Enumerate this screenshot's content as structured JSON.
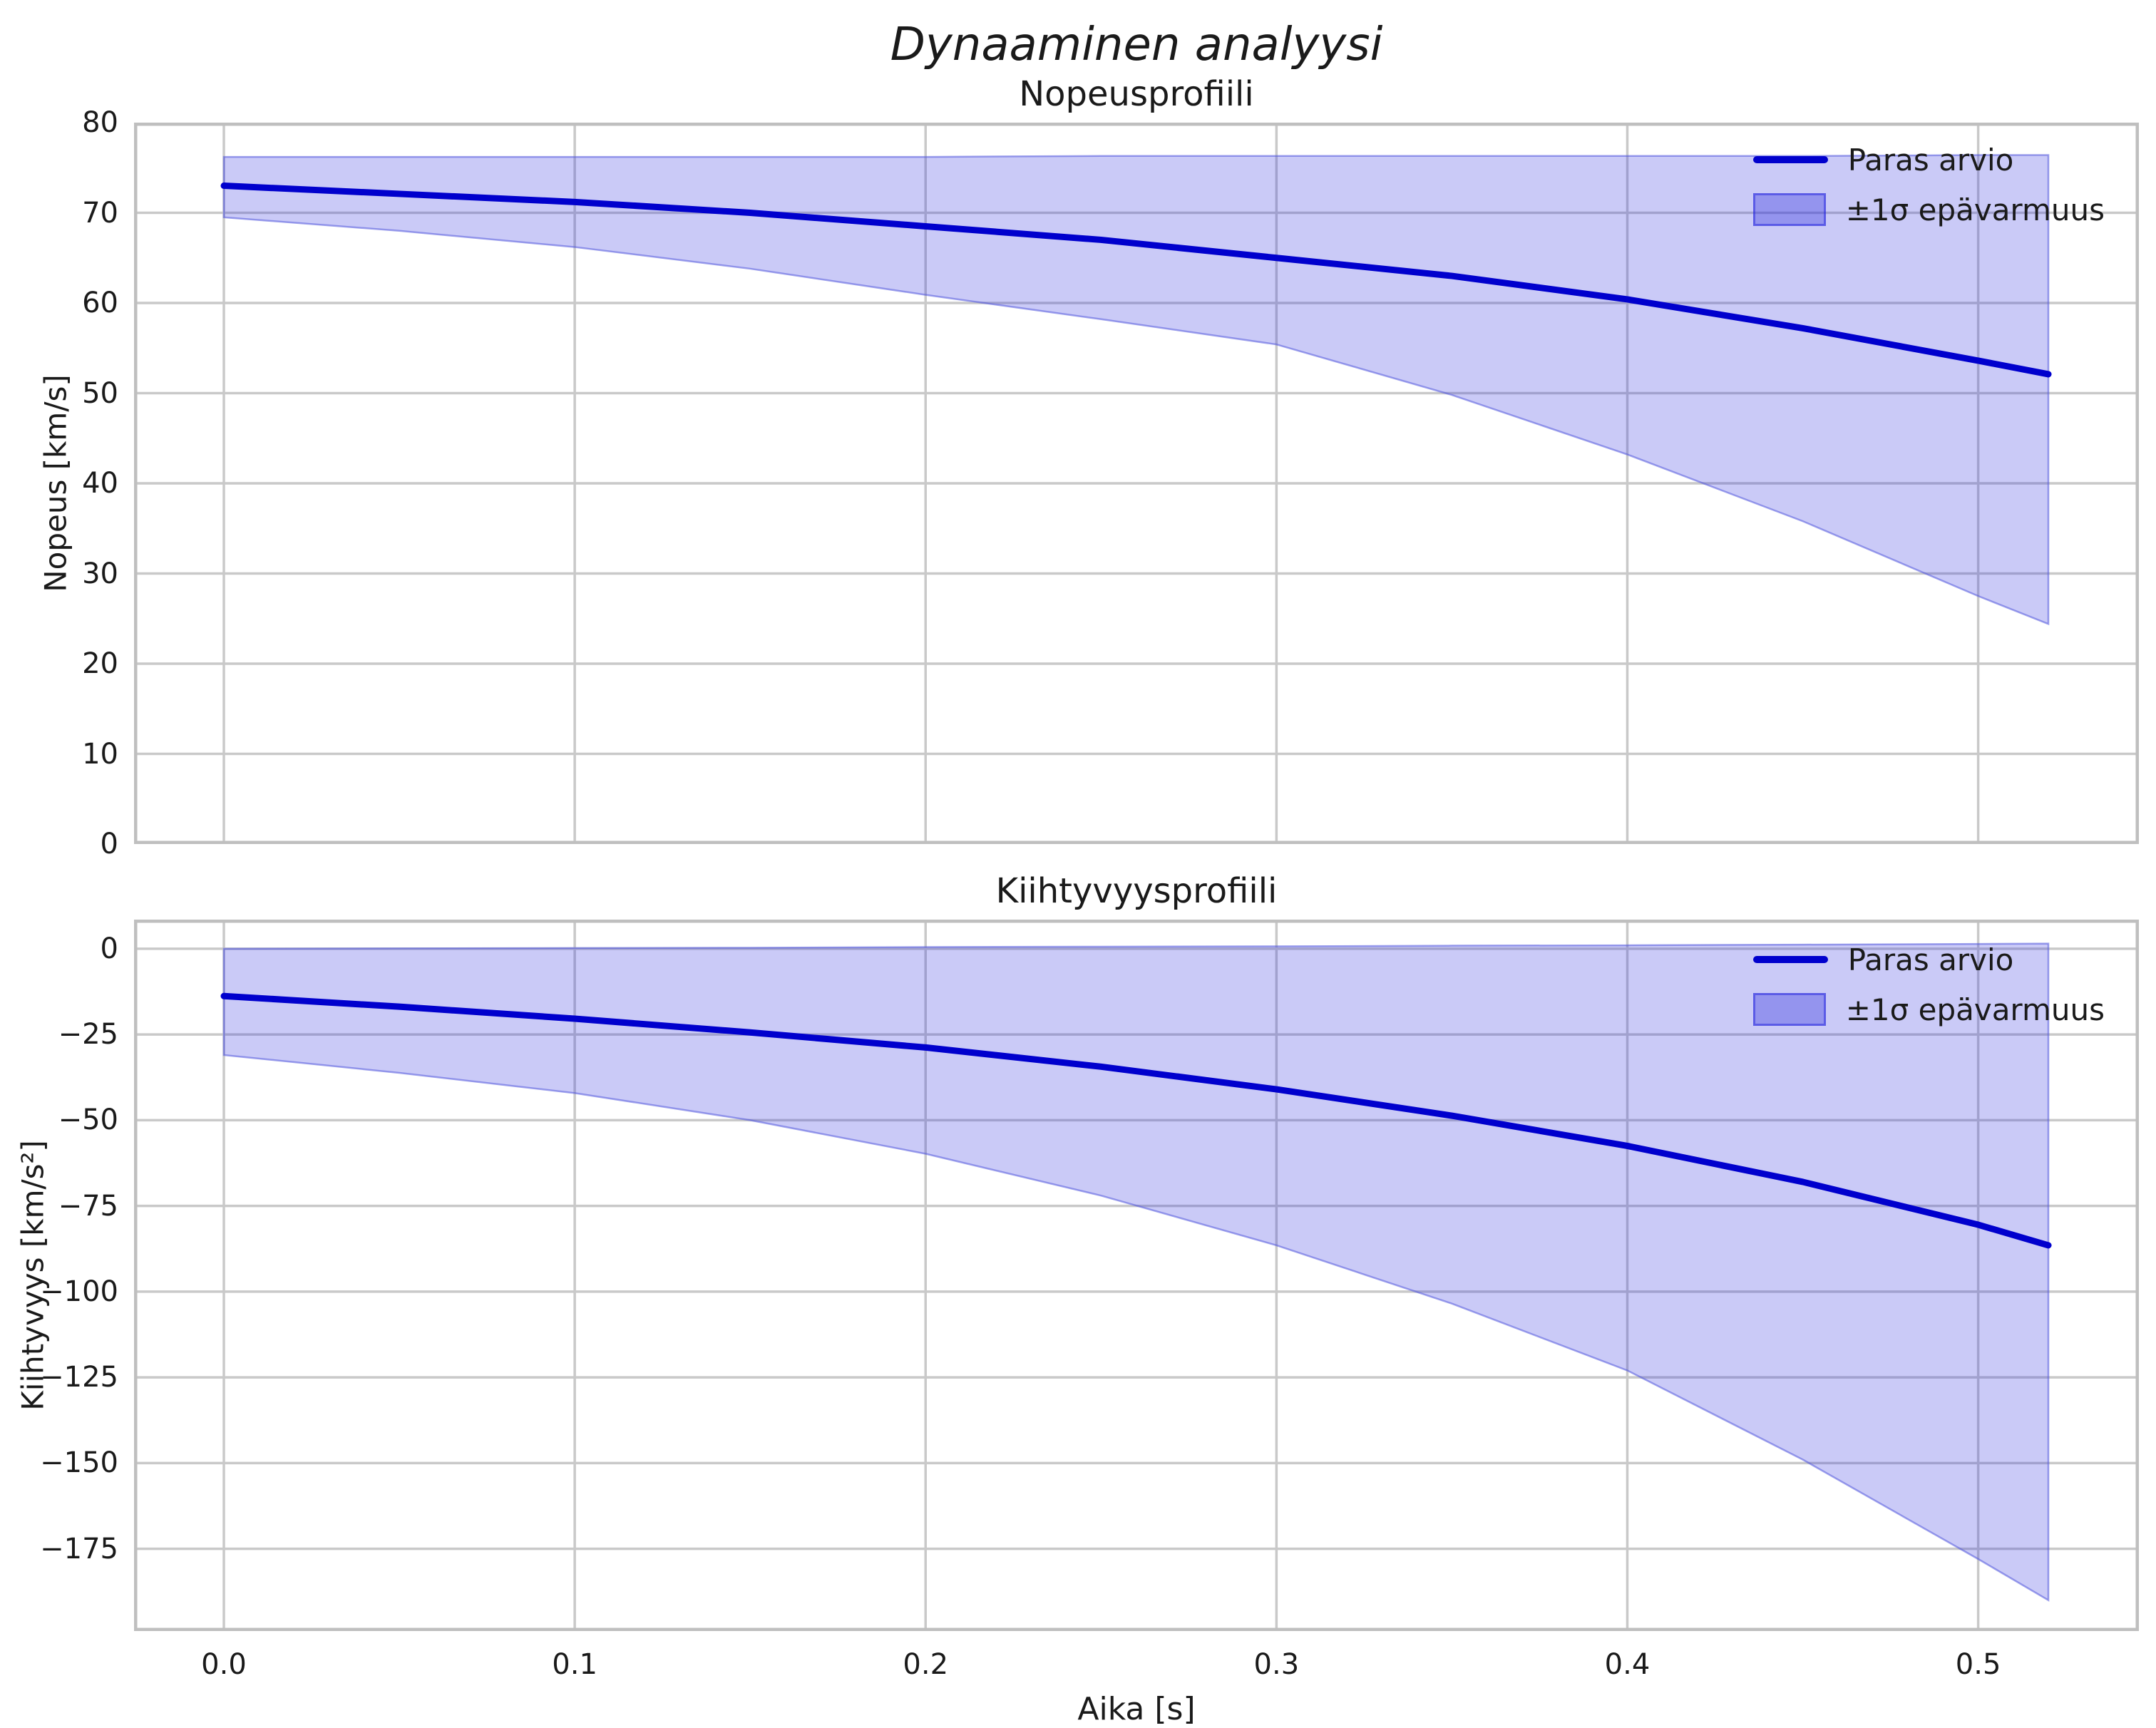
{
  "figure": {
    "title": "Dynaaminen analyysi"
  },
  "legend": {
    "line_label": "Paras arvio",
    "band_label": "±1σ epävarmuus"
  },
  "colors": {
    "line": "#0000cd",
    "band_fill": "#2222dd",
    "band_edge": "#5055dd",
    "grid": "#c9c9c9",
    "spine": "#bfbfbf",
    "text": "#1a1a1a"
  },
  "x_axis": {
    "label": "Aika [s]",
    "ticks": [
      0.0,
      0.1,
      0.2,
      0.3,
      0.4,
      0.5
    ],
    "tick_labels": [
      "0.0",
      "0.1",
      "0.2",
      "0.3",
      "0.4",
      "0.5"
    ],
    "range": [
      -0.0256,
      0.5458
    ]
  },
  "chart_data": [
    {
      "type": "line",
      "title": "Nopeusprofiili",
      "ylabel": "Nopeus [km/s]",
      "ylim": [
        0,
        80
      ],
      "yticks": [
        0,
        10,
        20,
        30,
        40,
        50,
        60,
        70,
        80
      ],
      "ytick_labels": [
        "0",
        "10",
        "20",
        "30",
        "40",
        "50",
        "60",
        "70",
        "80"
      ],
      "grid": true,
      "legend_position": "upper right",
      "x": [
        0,
        0.05,
        0.1,
        0.15,
        0.2,
        0.25,
        0.3,
        0.35,
        0.4,
        0.45,
        0.5,
        0.52
      ],
      "series": {
        "best": [
          73.0,
          72.1,
          71.2,
          70.0,
          68.5,
          67.0,
          65.0,
          63.0,
          60.4,
          57.2,
          53.6,
          52.1
        ],
        "band_upper": [
          76.2,
          76.2,
          76.2,
          76.2,
          76.2,
          76.3,
          76.3,
          76.3,
          76.3,
          76.3,
          76.4,
          76.4
        ],
        "band_lower": [
          69.5,
          68.0,
          66.2,
          63.8,
          60.9,
          58.2,
          55.4,
          49.8,
          43.2,
          35.8,
          27.5,
          24.4
        ]
      }
    },
    {
      "type": "line",
      "title": "Kiihtyvyysprofiili",
      "ylabel": "Kiihtyvyys [km/s²]",
      "ylim": [
        -199,
        8.5
      ],
      "yticks": [
        0,
        -25,
        -50,
        -75,
        -100,
        -125,
        -150,
        -175
      ],
      "ytick_labels": [
        "0",
        "−25",
        "−50",
        "−75",
        "−100",
        "−125",
        "−150",
        "−175"
      ],
      "grid": true,
      "legend_position": "upper right",
      "x": [
        0,
        0.05,
        0.1,
        0.15,
        0.2,
        0.25,
        0.3,
        0.35,
        0.4,
        0.45,
        0.5,
        0.52
      ],
      "series": {
        "best": [
          -13.8,
          -16.9,
          -20.4,
          -24.4,
          -28.8,
          -34.4,
          -41.0,
          -48.7,
          -57.5,
          -68.0,
          -80.5,
          -86.5
        ],
        "band_upper": [
          0.0,
          0.1,
          0.2,
          0.3,
          0.5,
          0.6,
          0.7,
          0.9,
          1.0,
          1.2,
          1.4,
          1.5
        ],
        "band_lower": [
          -31.0,
          -36.2,
          -42.1,
          -50.0,
          -59.8,
          -72.0,
          -86.5,
          -103.5,
          -123.0,
          -149.0,
          -178.0,
          -190.0
        ]
      }
    }
  ]
}
